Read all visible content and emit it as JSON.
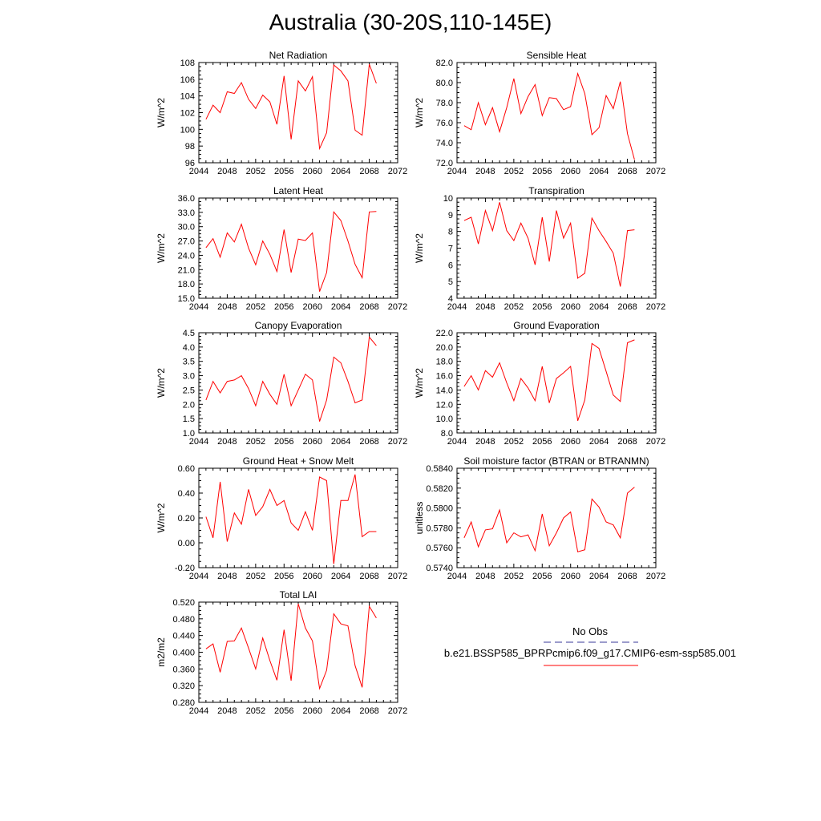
{
  "title": "Australia (30-20S,110-145E)",
  "colors": {
    "model": "#ff0000",
    "obs": "#3a3a9a"
  },
  "legend": {
    "obs_label": "No Obs",
    "model_label": "b.e21.BSSP585_BPRPcmip6.f09_g17.CMIP6-esm-ssp585.001"
  },
  "chart_data": [
    {
      "type": "line",
      "title": "Net Radiation",
      "ylabel": "W/m^2",
      "xlim": [
        2044,
        2072
      ],
      "ylim": [
        96,
        108
      ],
      "xticks": [
        "2044",
        "2048",
        "2052",
        "2056",
        "2060",
        "2064",
        "2068",
        "2072"
      ],
      "yticks": [
        "96",
        "98",
        "100",
        "102",
        "104",
        "106",
        "108"
      ],
      "x": [
        2045,
        2046,
        2047,
        2048,
        2049,
        2050,
        2051,
        2052,
        2053,
        2054,
        2055,
        2056,
        2057,
        2058,
        2059,
        2060,
        2061,
        2062,
        2063,
        2064,
        2065,
        2066,
        2067,
        2068,
        2069
      ],
      "values": [
        101.2,
        102.9,
        102.0,
        104.5,
        104.3,
        105.6,
        103.6,
        102.5,
        104.1,
        103.3,
        100.6,
        106.4,
        98.8,
        105.8,
        104.6,
        106.3,
        97.7,
        99.6,
        107.7,
        107.0,
        105.8,
        99.9,
        99.3,
        107.8,
        105.5
      ]
    },
    {
      "type": "line",
      "title": "Sensible Heat",
      "ylabel": "W/m^2",
      "xlim": [
        2044,
        2072
      ],
      "ylim": [
        72,
        82
      ],
      "xticks": [
        "2044",
        "2048",
        "2052",
        "2056",
        "2060",
        "2064",
        "2068",
        "2072"
      ],
      "yticks": [
        "72.0",
        "74.0",
        "76.0",
        "78.0",
        "80.0",
        "82.0"
      ],
      "x": [
        2045,
        2046,
        2047,
        2048,
        2049,
        2050,
        2051,
        2052,
        2053,
        2054,
        2055,
        2056,
        2057,
        2058,
        2059,
        2060,
        2061,
        2062,
        2063,
        2064,
        2065,
        2066,
        2067,
        2068,
        2069
      ],
      "values": [
        75.7,
        75.3,
        78.0,
        75.8,
        77.5,
        75.1,
        77.5,
        80.4,
        76.9,
        78.6,
        79.8,
        76.7,
        78.5,
        78.4,
        77.3,
        77.6,
        80.9,
        78.9,
        74.8,
        75.5,
        78.7,
        77.4,
        80.1,
        74.9,
        72.3
      ]
    },
    {
      "type": "line",
      "title": "Latent Heat",
      "ylabel": "W/m^2",
      "xlim": [
        2044,
        2072
      ],
      "ylim": [
        15,
        36
      ],
      "xticks": [
        "2044",
        "2048",
        "2052",
        "2056",
        "2060",
        "2064",
        "2068",
        "2072"
      ],
      "yticks": [
        "15.0",
        "18.0",
        "21.0",
        "24.0",
        "27.0",
        "30.0",
        "33.0",
        "36.0"
      ],
      "x": [
        2045,
        2046,
        2047,
        2048,
        2049,
        2050,
        2051,
        2052,
        2053,
        2054,
        2055,
        2056,
        2057,
        2058,
        2059,
        2060,
        2061,
        2062,
        2063,
        2064,
        2065,
        2066,
        2067,
        2068,
        2069
      ],
      "values": [
        25.6,
        27.5,
        23.6,
        28.7,
        26.8,
        30.5,
        25.5,
        22.0,
        27.0,
        24.2,
        20.6,
        29.4,
        20.4,
        27.4,
        27.1,
        28.7,
        16.4,
        20.4,
        33.1,
        31.3,
        27.0,
        22.1,
        19.3,
        33.1,
        33.2
      ]
    },
    {
      "type": "line",
      "title": "Transpiration",
      "ylabel": "W/m^2",
      "xlim": [
        2044,
        2072
      ],
      "ylim": [
        4,
        10
      ],
      "xticks": [
        "2044",
        "2048",
        "2052",
        "2056",
        "2060",
        "2064",
        "2068",
        "2072"
      ],
      "yticks": [
        "4",
        "5",
        "6",
        "7",
        "8",
        "9",
        "10"
      ],
      "x": [
        2045,
        2046,
        2047,
        2048,
        2049,
        2050,
        2051,
        2052,
        2053,
        2054,
        2055,
        2056,
        2057,
        2058,
        2059,
        2060,
        2061,
        2062,
        2063,
        2064,
        2065,
        2066,
        2067,
        2068,
        2069
      ],
      "values": [
        8.65,
        8.85,
        7.25,
        9.25,
        8.05,
        9.75,
        8.05,
        7.45,
        8.5,
        7.6,
        6.0,
        8.85,
        6.2,
        9.25,
        7.6,
        8.5,
        5.2,
        5.5,
        8.8,
        8.05,
        7.4,
        6.7,
        4.7,
        8.05,
        8.1
      ]
    },
    {
      "type": "line",
      "title": "Canopy Evaporation",
      "ylabel": "W/m^2",
      "xlim": [
        2044,
        2072
      ],
      "ylim": [
        1.0,
        4.5
      ],
      "xticks": [
        "2044",
        "2048",
        "2052",
        "2056",
        "2060",
        "2064",
        "2068",
        "2072"
      ],
      "yticks": [
        "1.0",
        "1.5",
        "2.0",
        "2.5",
        "3.0",
        "3.5",
        "4.0",
        "4.5"
      ],
      "x": [
        2045,
        2046,
        2047,
        2048,
        2049,
        2050,
        2051,
        2052,
        2053,
        2054,
        2055,
        2056,
        2057,
        2058,
        2059,
        2060,
        2061,
        2062,
        2063,
        2064,
        2065,
        2066,
        2067,
        2068,
        2069
      ],
      "values": [
        2.15,
        2.8,
        2.4,
        2.8,
        2.85,
        3.0,
        2.55,
        1.95,
        2.8,
        2.35,
        2.0,
        3.05,
        1.95,
        2.5,
        3.05,
        2.85,
        1.4,
        2.15,
        3.65,
        3.45,
        2.8,
        2.05,
        2.15,
        4.35,
        4.05
      ]
    },
    {
      "type": "line",
      "title": "Ground Evaporation",
      "ylabel": "W/m^2",
      "xlim": [
        2044,
        2072
      ],
      "ylim": [
        8,
        22
      ],
      "xticks": [
        "2044",
        "2048",
        "2052",
        "2056",
        "2060",
        "2064",
        "2068",
        "2072"
      ],
      "yticks": [
        "8.0",
        "10.0",
        "12.0",
        "14.0",
        "16.0",
        "18.0",
        "20.0",
        "22.0"
      ],
      "x": [
        2045,
        2046,
        2047,
        2048,
        2049,
        2050,
        2051,
        2052,
        2053,
        2054,
        2055,
        2056,
        2057,
        2058,
        2059,
        2060,
        2061,
        2062,
        2063,
        2064,
        2065,
        2066,
        2067,
        2068,
        2069
      ],
      "values": [
        14.5,
        16.0,
        14.0,
        16.7,
        15.8,
        17.8,
        15.0,
        12.5,
        15.6,
        14.3,
        12.5,
        17.3,
        12.2,
        15.6,
        16.4,
        17.3,
        9.7,
        12.6,
        20.5,
        19.8,
        16.6,
        13.3,
        12.4,
        20.6,
        21.0
      ]
    },
    {
      "type": "line",
      "title": "Ground Heat + Snow Melt",
      "ylabel": "W/m^2",
      "xlim": [
        2044,
        2072
      ],
      "ylim": [
        -0.2,
        0.6
      ],
      "xticks": [
        "2044",
        "2048",
        "2052",
        "2056",
        "2060",
        "2064",
        "2068",
        "2072"
      ],
      "yticks": [
        "-0.20",
        "0.00",
        "0.20",
        "0.40",
        "0.60"
      ],
      "x": [
        2045,
        2046,
        2047,
        2048,
        2049,
        2050,
        2051,
        2052,
        2053,
        2054,
        2055,
        2056,
        2057,
        2058,
        2059,
        2060,
        2061,
        2062,
        2063,
        2064,
        2065,
        2066,
        2067,
        2068,
        2069
      ],
      "values": [
        0.21,
        0.04,
        0.49,
        0.01,
        0.24,
        0.15,
        0.43,
        0.22,
        0.29,
        0.43,
        0.3,
        0.34,
        0.16,
        0.1,
        0.25,
        0.1,
        0.53,
        0.5,
        -0.17,
        0.34,
        0.34,
        0.55,
        0.05,
        0.09,
        0.09
      ]
    },
    {
      "type": "line",
      "title": "Soil moisture factor (BTRAN or BTRANMN)",
      "ylabel": "unitless",
      "xlim": [
        2044,
        2072
      ],
      "ylim": [
        0.574,
        0.584
      ],
      "xticks": [
        "2044",
        "2048",
        "2052",
        "2056",
        "2060",
        "2064",
        "2068",
        "2072"
      ],
      "yticks": [
        "0.5740",
        "0.5760",
        "0.5780",
        "0.5800",
        "0.5820",
        "0.5840"
      ],
      "x": [
        2045,
        2046,
        2047,
        2048,
        2049,
        2050,
        2051,
        2052,
        2053,
        2054,
        2055,
        2056,
        2057,
        2058,
        2059,
        2060,
        2061,
        2062,
        2063,
        2064,
        2065,
        2066,
        2067,
        2068,
        2069
      ],
      "values": [
        0.577,
        0.5786,
        0.5761,
        0.5778,
        0.5779,
        0.5798,
        0.5765,
        0.5775,
        0.5771,
        0.5773,
        0.5757,
        0.5794,
        0.5762,
        0.5775,
        0.579,
        0.5796,
        0.5756,
        0.5758,
        0.5809,
        0.5801,
        0.5786,
        0.5783,
        0.577,
        0.5815,
        0.5821
      ]
    },
    {
      "type": "line",
      "title": "Total LAI",
      "ylabel": "m2/m2",
      "xlim": [
        2044,
        2072
      ],
      "ylim": [
        0.28,
        0.52
      ],
      "xticks": [
        "2044",
        "2048",
        "2052",
        "2056",
        "2060",
        "2064",
        "2068",
        "2072"
      ],
      "yticks": [
        "0.280",
        "0.320",
        "0.360",
        "0.400",
        "0.440",
        "0.480",
        "0.520"
      ],
      "x": [
        2045,
        2046,
        2047,
        2048,
        2049,
        2050,
        2051,
        2052,
        2053,
        2054,
        2055,
        2056,
        2057,
        2058,
        2059,
        2060,
        2061,
        2062,
        2063,
        2064,
        2065,
        2066,
        2067,
        2068,
        2069
      ],
      "values": [
        0.408,
        0.42,
        0.352,
        0.426,
        0.427,
        0.458,
        0.41,
        0.36,
        0.434,
        0.38,
        0.333,
        0.454,
        0.332,
        0.516,
        0.458,
        0.427,
        0.313,
        0.357,
        0.492,
        0.468,
        0.463,
        0.368,
        0.316,
        0.51,
        0.482
      ]
    }
  ]
}
